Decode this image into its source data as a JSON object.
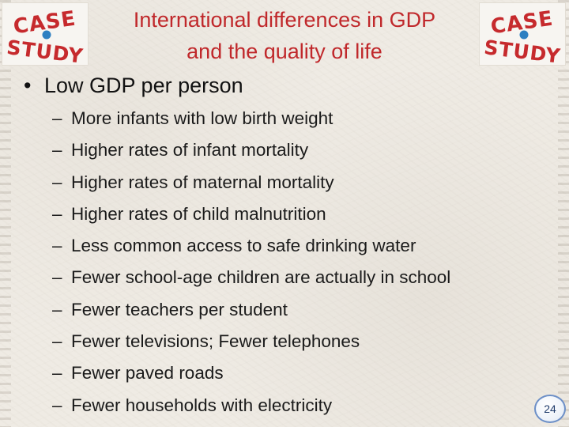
{
  "slide": {
    "title_line1": "International differences in GDP",
    "title_line2": "and the quality of life",
    "logo_text": [
      "CASE",
      "STUDY"
    ],
    "bullet": {
      "symbol": "•",
      "text": "Low GDP per person"
    },
    "sub_dash": "–",
    "sub_items": [
      "More infants with low birth weight",
      "Higher rates of infant mortality",
      "Higher rates of maternal mortality",
      "Higher rates of child malnutrition",
      "Less common access to safe drinking water",
      "Fewer school-age children are actually in school",
      "Fewer teachers per student",
      "Fewer televisions; Fewer telephones",
      "Fewer paved roads",
      "Fewer households with electricity"
    ],
    "page_number": "24"
  },
  "colors": {
    "title": "#c0282b",
    "logo_red": "#c62a2d",
    "logo_blue": "#2d7fc1",
    "text": "#1a1a1a"
  }
}
